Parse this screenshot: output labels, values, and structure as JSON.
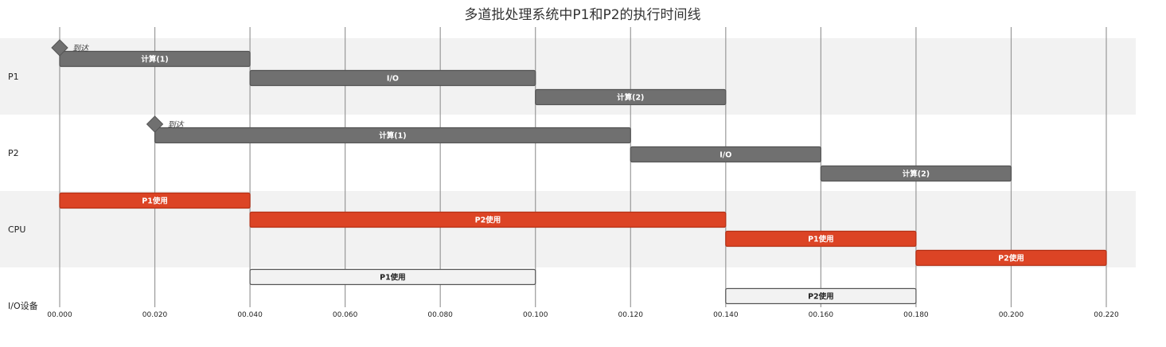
{
  "chart_data": {
    "type": "gantt",
    "title": "多道批处理系统中P1和P2的执行时间线",
    "xlim": [
      0,
      0.22
    ],
    "x_ticks": [
      "00.000",
      "00.020",
      "00.040",
      "00.060",
      "00.080",
      "00.100",
      "00.120",
      "00.140",
      "00.160",
      "00.180",
      "00.200",
      "00.220"
    ],
    "tick_values": [
      0,
      0.02,
      0.04,
      0.06,
      0.08,
      0.1,
      0.12,
      0.14,
      0.16,
      0.18,
      0.2,
      0.22
    ],
    "grid": true,
    "rows": [
      {
        "label": "P1",
        "milestones": [
          {
            "label": "到达",
            "x": 0.0
          }
        ],
        "tasks": [
          {
            "label": "计算(1)",
            "start": 0.0,
            "end": 0.04,
            "style": "gray"
          },
          {
            "label": "I/O",
            "start": 0.04,
            "end": 0.1,
            "style": "gray"
          },
          {
            "label": "计算(2)",
            "start": 0.1,
            "end": 0.14,
            "style": "gray"
          }
        ]
      },
      {
        "label": "P2",
        "milestones": [
          {
            "label": "到达",
            "x": 0.02
          }
        ],
        "tasks": [
          {
            "label": "计算(1)",
            "start": 0.02,
            "end": 0.12,
            "style": "gray"
          },
          {
            "label": "I/O",
            "start": 0.12,
            "end": 0.16,
            "style": "gray"
          },
          {
            "label": "计算(2)",
            "start": 0.16,
            "end": 0.2,
            "style": "gray"
          }
        ]
      },
      {
        "label": "CPU",
        "milestones": [],
        "tasks": [
          {
            "label": "P1使用",
            "start": 0.0,
            "end": 0.04,
            "style": "red"
          },
          {
            "label": "P2使用",
            "start": 0.04,
            "end": 0.14,
            "style": "red"
          },
          {
            "label": "P1使用",
            "start": 0.14,
            "end": 0.18,
            "style": "red"
          },
          {
            "label": "P2使用",
            "start": 0.18,
            "end": 0.22,
            "style": "red"
          }
        ]
      },
      {
        "label": "I/O设备",
        "milestones": [],
        "tasks": [
          {
            "label": "P1使用",
            "start": 0.04,
            "end": 0.1,
            "style": "light"
          },
          {
            "label": "P2使用",
            "start": 0.14,
            "end": 0.18,
            "style": "light"
          }
        ]
      }
    ],
    "colors": {
      "gray_fill": "#707070",
      "gray_stroke": "#555555",
      "red_fill": "#dc4425",
      "red_stroke": "#b33218",
      "light_fill": "#f2f2f2",
      "light_stroke": "#555555",
      "band": "#f2f2f2",
      "grid": "#999999",
      "milestone": "#707070"
    }
  }
}
